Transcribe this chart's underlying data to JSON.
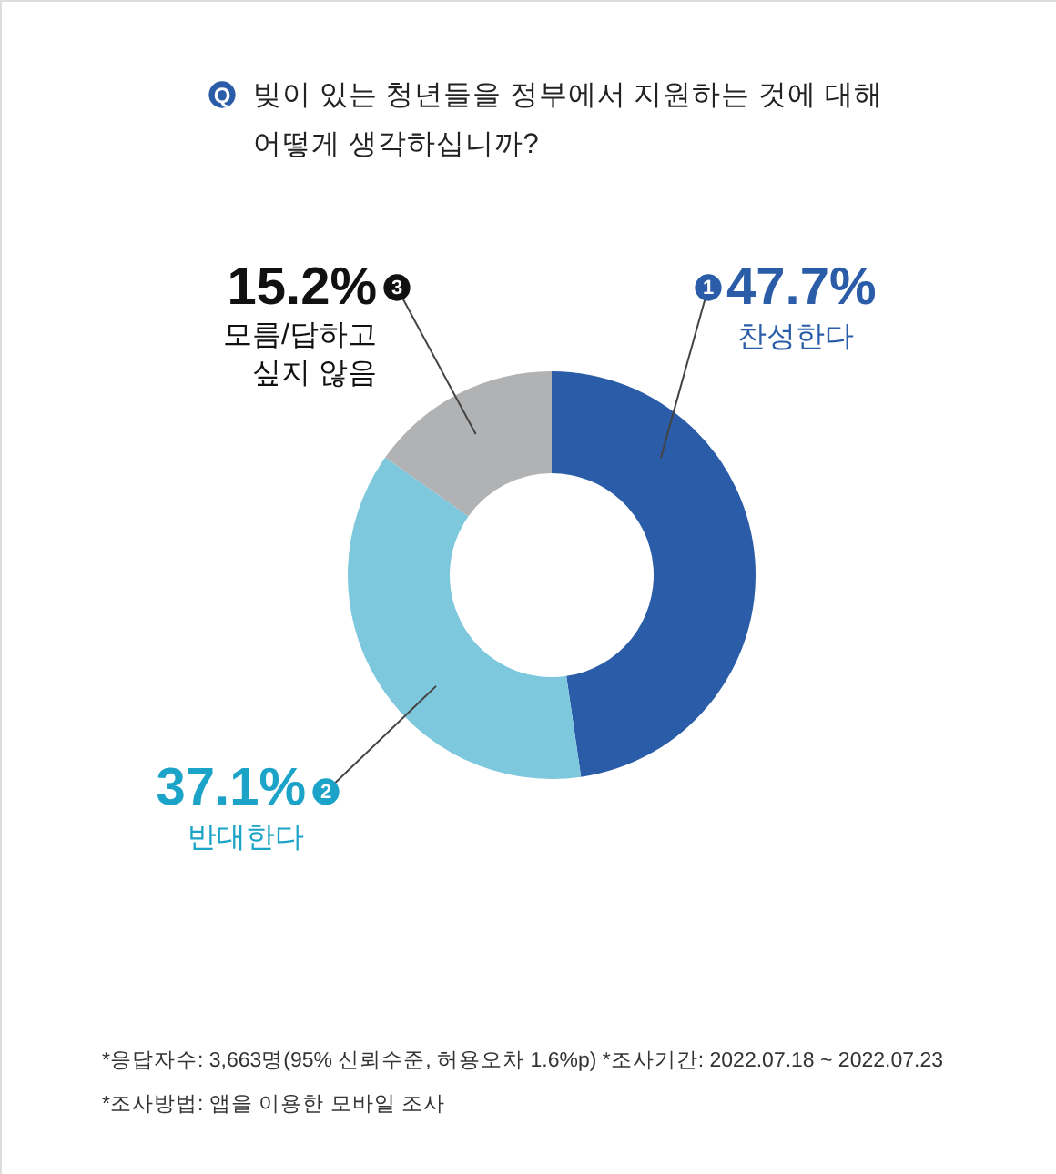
{
  "chart_data": {
    "type": "donut",
    "title": "빚이 있는 청년들을 정부에서 지원하는 것에 대해 어떻게 생각하십니까?",
    "categories": [
      "찬성한다",
      "반대한다",
      "모름/답하고 싶지 않음"
    ],
    "values": [
      47.7,
      37.1,
      15.2
    ],
    "colors": [
      "#2b5ca8",
      "#7ec8de",
      "#b1b2b4"
    ],
    "value_labels": [
      "47.7%",
      "37.1%",
      "15.2%"
    ],
    "annotations": [
      "Q",
      "1",
      "2",
      "3",
      "*응답자수: 3,663명(95% 신뢰수준, 허용오차 1.6%p)  *조사기간: 2022.07.18 ~ 2022.07.23",
      "*조사방법: 앱을 이용한 모바일 조사"
    ]
  }
}
